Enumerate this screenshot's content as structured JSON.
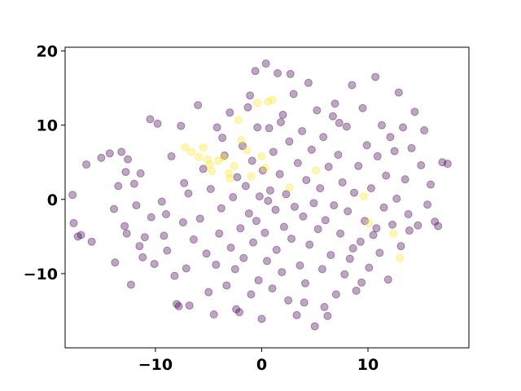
{
  "chart_data": {
    "type": "scatter",
    "title": "",
    "xlabel": "",
    "ylabel": "",
    "xlim": [
      -18.5,
      19.5
    ],
    "ylim": [
      -20,
      20.5
    ],
    "xticks": [
      -10,
      0,
      10
    ],
    "yticks": [
      -10,
      0,
      10,
      20
    ],
    "xtick_labels": [
      "−10",
      "0",
      "10"
    ],
    "ytick_labels": [
      "−10",
      "0",
      "10",
      "20"
    ],
    "grid": false,
    "legend": "none",
    "marker": "circle",
    "alpha": 0.35,
    "colors": {
      "purple": "#440154",
      "yellow": "#fde725"
    },
    "series": [
      {
        "color": "#440154",
        "points": [
          [
            -17.8,
            0.6
          ],
          [
            -17.7,
            -3.2
          ],
          [
            -17.3,
            -5.0
          ],
          [
            -17.0,
            -4.8
          ],
          [
            -16.5,
            4.7
          ],
          [
            -16.0,
            -5.7
          ],
          [
            -14.3,
            6.2
          ],
          [
            -13.9,
            -1.3
          ],
          [
            -13.8,
            -8.5
          ],
          [
            -13.5,
            1.8
          ],
          [
            -13.2,
            6.4
          ],
          [
            -12.9,
            -3.6
          ],
          [
            -12.8,
            3.7
          ],
          [
            -12.7,
            -4.6
          ],
          [
            -12.6,
            5.4
          ],
          [
            -12.3,
            -11.5
          ],
          [
            -12.0,
            2.1
          ],
          [
            -11.8,
            -0.8
          ],
          [
            -11.5,
            -6.3
          ],
          [
            -11.2,
            -7.8
          ],
          [
            -11.0,
            -5.1
          ],
          [
            -10.5,
            10.8
          ],
          [
            -10.4,
            -2.4
          ],
          [
            -10.1,
            -8.7
          ],
          [
            -9.8,
            10.2
          ],
          [
            -9.4,
            -0.3
          ],
          [
            -9.2,
            -4.9
          ],
          [
            -8.9,
            -6.9
          ],
          [
            -8.5,
            5.8
          ],
          [
            -8.2,
            -10.3
          ],
          [
            -8.0,
            -14.1
          ],
          [
            -7.8,
            -14.4
          ],
          [
            -7.6,
            9.9
          ],
          [
            -7.4,
            -3.1
          ],
          [
            -7.3,
            2.2
          ],
          [
            -6.8,
            -14.3
          ],
          [
            -6.4,
            -5.4
          ],
          [
            -6.0,
            12.7
          ],
          [
            -5.8,
            -2.6
          ],
          [
            -5.5,
            4.1
          ],
          [
            -5.2,
            -7.3
          ],
          [
            -5.0,
            -12.5
          ],
          [
            -4.8,
            1.4
          ],
          [
            -4.5,
            -15.5
          ],
          [
            -4.2,
            9.7
          ],
          [
            -4.0,
            -4.6
          ],
          [
            -3.8,
            -1.2
          ],
          [
            -3.5,
            5.9
          ],
          [
            -3.3,
            -11.6
          ],
          [
            -3.0,
            11.7
          ],
          [
            -2.9,
            -6.5
          ],
          [
            -2.7,
            0.3
          ],
          [
            -2.5,
            -9.4
          ],
          [
            -2.3,
            3.0
          ],
          [
            -2.1,
            -15.2
          ],
          [
            -2.0,
            -3.9
          ],
          [
            -1.8,
            7.2
          ],
          [
            -1.7,
            -7.9
          ],
          [
            -1.5,
            1.8
          ],
          [
            -1.3,
            12.4
          ],
          [
            -1.2,
            -1.9
          ],
          [
            -1.0,
            -12.8
          ],
          [
            -0.9,
            5.2
          ],
          [
            -0.8,
            -5.8
          ],
          [
            -0.6,
            17.3
          ],
          [
            -0.5,
            -2.9
          ],
          [
            -0.4,
            9.7
          ],
          [
            -0.3,
            -10.9
          ],
          [
            -0.2,
            0.4
          ],
          [
            0.0,
            -16.1
          ],
          [
            0.1,
            3.9
          ],
          [
            0.3,
            -4.5
          ],
          [
            0.4,
            18.3
          ],
          [
            0.5,
            -8.3
          ],
          [
            0.7,
            9.6
          ],
          [
            0.8,
            1.2
          ],
          [
            1.0,
            -12.0
          ],
          [
            1.1,
            6.4
          ],
          [
            1.3,
            -1.4
          ],
          [
            1.4,
            -6.8
          ],
          [
            1.5,
            17.0
          ],
          [
            1.7,
            3.4
          ],
          [
            1.9,
            -9.8
          ],
          [
            2.0,
            11.4
          ],
          [
            2.1,
            -3.7
          ],
          [
            2.3,
            0.7
          ],
          [
            2.5,
            -13.6
          ],
          [
            2.6,
            7.8
          ],
          [
            2.8,
            -5.3
          ],
          [
            3.0,
            14.2
          ],
          [
            3.1,
            -1.0
          ],
          [
            3.3,
            -15.6
          ],
          [
            3.4,
            4.9
          ],
          [
            3.6,
            -8.9
          ],
          [
            3.8,
            9.2
          ],
          [
            3.9,
            -2.3
          ],
          [
            4.1,
            -11.3
          ],
          [
            4.2,
            2.6
          ],
          [
            4.4,
            15.7
          ],
          [
            4.5,
            -6.1
          ],
          [
            4.7,
            6.7
          ],
          [
            4.9,
            -0.5
          ],
          [
            5.0,
            -17.1
          ],
          [
            5.2,
            12.0
          ],
          [
            5.3,
            -4.0
          ],
          [
            5.5,
            1.5
          ],
          [
            5.7,
            -9.4
          ],
          [
            5.8,
            8.4
          ],
          [
            6.0,
            -2.8
          ],
          [
            6.2,
            -15.7
          ],
          [
            6.3,
            4.4
          ],
          [
            6.5,
            -7.5
          ],
          [
            6.7,
            11.2
          ],
          [
            6.8,
            -0.8
          ],
          [
            7.0,
            -12.8
          ],
          [
            7.2,
            6.0
          ],
          [
            7.4,
            -4.6
          ],
          [
            7.6,
            2.3
          ],
          [
            7.8,
            -10.1
          ],
          [
            8.0,
            9.8
          ],
          [
            8.1,
            -1.6
          ],
          [
            8.3,
            -8.0
          ],
          [
            8.5,
            15.4
          ],
          [
            8.7,
            0.9
          ],
          [
            8.9,
            -12.3
          ],
          [
            9.1,
            4.5
          ],
          [
            9.3,
            -5.7
          ],
          [
            9.5,
            12.3
          ],
          [
            9.7,
            -2.9
          ],
          [
            9.9,
            7.3
          ],
          [
            10.1,
            -9.2
          ],
          [
            10.3,
            1.5
          ],
          [
            10.5,
            -4.8
          ],
          [
            10.7,
            16.5
          ],
          [
            10.9,
            5.8
          ],
          [
            11.1,
            -7.2
          ],
          [
            11.3,
            10.0
          ],
          [
            11.5,
            -1.1
          ],
          [
            11.7,
            3.2
          ],
          [
            11.9,
            -10.8
          ],
          [
            12.1,
            8.4
          ],
          [
            12.3,
            -3.4
          ],
          [
            12.5,
            6.5
          ],
          [
            12.7,
            0.1
          ],
          [
            12.9,
            14.4
          ],
          [
            13.1,
            -6.3
          ],
          [
            13.3,
            9.7
          ],
          [
            13.5,
            2.7
          ],
          [
            13.8,
            -2.0
          ],
          [
            14.1,
            6.9
          ],
          [
            14.4,
            11.8
          ],
          [
            14.7,
            -3.5
          ],
          [
            15.0,
            4.6
          ],
          [
            15.3,
            9.3
          ],
          [
            15.6,
            -0.7
          ],
          [
            15.9,
            2.0
          ],
          [
            16.3,
            -3.0
          ],
          [
            16.6,
            -3.6
          ],
          [
            17.0,
            5.0
          ],
          [
            17.5,
            4.8
          ],
          [
            -15.1,
            5.6
          ],
          [
            -9.0,
            -2.0
          ],
          [
            -6.9,
            0.8
          ],
          [
            -4.3,
            -8.8
          ],
          [
            -1.1,
            14.0
          ],
          [
            2.7,
            16.9
          ],
          [
            6.9,
            12.9
          ],
          [
            10.8,
            -3.9
          ],
          [
            13.9,
            -4.2
          ],
          [
            -3.7,
            8.3
          ],
          [
            0.6,
            -0.2
          ],
          [
            4.0,
            -13.9
          ],
          [
            8.6,
            -6.6
          ],
          [
            -11.4,
            3.5
          ],
          [
            -7.1,
            -9.3
          ],
          [
            1.8,
            10.4
          ],
          [
            5.9,
            -14.5
          ],
          [
            9.4,
            -11.2
          ],
          [
            -2.4,
            -14.8
          ],
          [
            7.3,
            10.3
          ]
        ]
      },
      {
        "color": "#fde725",
        "points": [
          [
            -7.2,
            7.0
          ],
          [
            -6.6,
            6.4
          ],
          [
            -5.9,
            5.7
          ],
          [
            -5.5,
            7.0
          ],
          [
            -5.1,
            5.4
          ],
          [
            -4.7,
            3.8
          ],
          [
            -4.1,
            5.2
          ],
          [
            -3.6,
            5.7
          ],
          [
            -3.1,
            3.5
          ],
          [
            -2.6,
            4.5
          ],
          [
            -2.2,
            10.7
          ],
          [
            -1.9,
            8.0
          ],
          [
            -1.4,
            6.6
          ],
          [
            -1.0,
            3.1
          ],
          [
            -0.4,
            13.0
          ],
          [
            0.0,
            5.8
          ],
          [
            0.3,
            4.2
          ],
          [
            0.6,
            13.2
          ],
          [
            1.0,
            13.4
          ],
          [
            2.6,
            1.6
          ],
          [
            5.1,
            3.9
          ],
          [
            9.6,
            0.4
          ],
          [
            10.1,
            -3.2
          ],
          [
            12.4,
            -4.6
          ],
          [
            13.0,
            -7.9
          ],
          [
            -3.0,
            2.8
          ],
          [
            -4.9,
            4.7
          ]
        ]
      }
    ]
  }
}
